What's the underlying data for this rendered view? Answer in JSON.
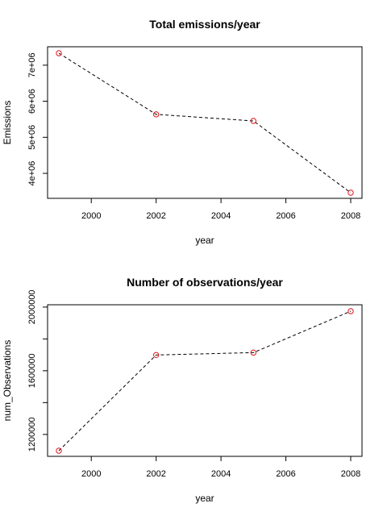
{
  "chart_data": [
    {
      "type": "line",
      "title": "Total emissions/year",
      "xlabel": "year",
      "ylabel": "Emissions",
      "x": [
        1999,
        2002,
        2005,
        2008
      ],
      "y": [
        7332000,
        5636000,
        5454000,
        3464000
      ],
      "xlim": [
        1999,
        2008
      ],
      "ylim": [
        3464000,
        7332000
      ],
      "xticks": [
        2000,
        2002,
        2004,
        2006,
        2008
      ],
      "xtick_labels": [
        "2000",
        "2002",
        "2004",
        "2006",
        "2008"
      ],
      "yticks": [
        4000000,
        5000000,
        6000000,
        7000000
      ],
      "ytick_labels": [
        "4e+06",
        "5e+06",
        "6e+06",
        "7e+06"
      ],
      "line_style": "dashed",
      "line_color": "#000000",
      "marker": "open-circle",
      "marker_color": "#e0151b",
      "grid": false,
      "legend": "none"
    },
    {
      "type": "line",
      "title": "Number of observations/year",
      "xlabel": "year",
      "ylabel": "num_Observations",
      "x": [
        1999,
        2002,
        2005,
        2008
      ],
      "y": [
        1098000,
        1699000,
        1714000,
        1974000
      ],
      "xlim": [
        1999,
        2008
      ],
      "ylim": [
        1098000,
        1974000
      ],
      "xticks": [
        2000,
        2002,
        2004,
        2006,
        2008
      ],
      "xtick_labels": [
        "2000",
        "2002",
        "2004",
        "2006",
        "2008"
      ],
      "yticks": [
        1200000,
        1400000,
        1600000,
        1800000,
        2000000
      ],
      "ytick_labels": [
        "1200000",
        "",
        "1600000",
        "",
        "2000000"
      ],
      "line_style": "dashed",
      "line_color": "#000000",
      "marker": "open-circle",
      "marker_color": "#e0151b",
      "grid": false,
      "legend": "none"
    }
  ]
}
